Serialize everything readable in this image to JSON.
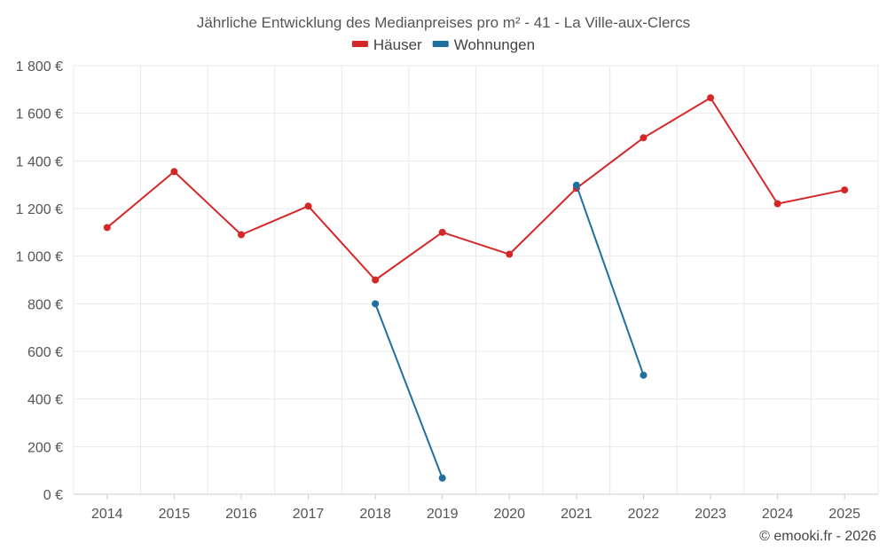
{
  "chart_data": {
    "type": "line",
    "title": "Jährliche Entwicklung des Medianpreises pro m² - 41 - La Ville-aux-Clercs",
    "x": [
      "2014",
      "2015",
      "2016",
      "2017",
      "2018",
      "2019",
      "2020",
      "2021",
      "2022",
      "2023",
      "2024",
      "2025"
    ],
    "series": [
      {
        "name": "Häuser",
        "color": "#d62728",
        "values": [
          1120,
          1355,
          1090,
          1210,
          900,
          1100,
          1008,
          1285,
          1497,
          1665,
          1220,
          1278
        ]
      },
      {
        "name": "Wohnungen",
        "color": "#1f6fa0",
        "values": [
          null,
          null,
          null,
          null,
          800,
          68,
          null,
          1298,
          500,
          null,
          null,
          null
        ]
      }
    ],
    "ylim": [
      0,
      1800
    ],
    "yticks": [
      0,
      200,
      400,
      600,
      800,
      1000,
      1200,
      1400,
      1600,
      1800
    ],
    "ytick_labels": [
      "0 €",
      "200 €",
      "400 €",
      "600 €",
      "800 €",
      "1 000 €",
      "1 200 €",
      "1 400 €",
      "1 600 €",
      "1 800 €"
    ],
    "xlabel": "",
    "ylabel": "",
    "grid": true,
    "legend_position": "top-center"
  },
  "credit": "© emooki.fr - 2026"
}
